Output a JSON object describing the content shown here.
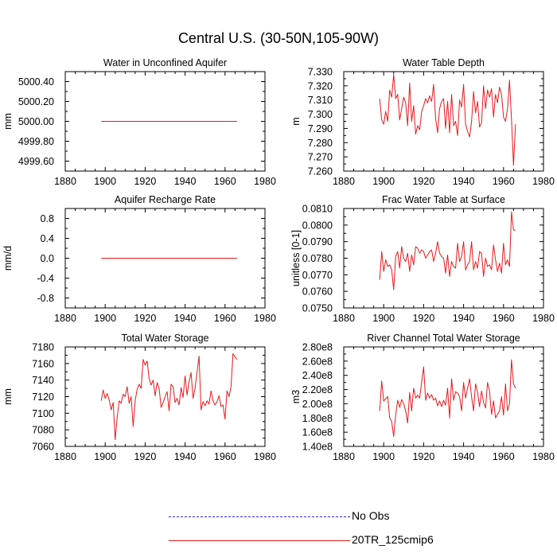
{
  "figure_title": "Central U.S. (30-50N,105-90W)",
  "colors": {
    "model": "#e8191a",
    "obs": "#2b2bd6",
    "axis": "#000000"
  },
  "legend": [
    {
      "label": "No Obs",
      "style": "dashed",
      "color": "#2b2bd6"
    },
    {
      "label": "20TR_125cmip6",
      "style": "solid",
      "color": "#e8191a"
    }
  ],
  "chart_data": [
    {
      "type": "line",
      "title": "Water in Unconfined Aquifer",
      "xlabel": "",
      "ylabel": "mm",
      "xlim": [
        1880,
        1980
      ],
      "ylim": [
        4999.5,
        5000.5
      ],
      "xticks": [
        1880,
        1900,
        1920,
        1940,
        1960,
        1980
      ],
      "yticks": [
        4999.6,
        4999.8,
        5000.0,
        5000.2,
        5000.4
      ],
      "ytick_labels": [
        "4999.60",
        "4999.80",
        "5000.00",
        "5000.20",
        "5000.40"
      ],
      "series": [
        {
          "name": "20TR_125cmip6",
          "x_start": 1898,
          "x_step": 1,
          "values": [
            5000,
            5000,
            5000,
            5000,
            5000,
            5000,
            5000,
            5000,
            5000,
            5000,
            5000,
            5000,
            5000,
            5000,
            5000,
            5000,
            5000,
            5000,
            5000,
            5000,
            5000,
            5000,
            5000,
            5000,
            5000,
            5000,
            5000,
            5000,
            5000,
            5000,
            5000,
            5000,
            5000,
            5000,
            5000,
            5000,
            5000,
            5000,
            5000,
            5000,
            5000,
            5000,
            5000,
            5000,
            5000,
            5000,
            5000,
            5000,
            5000,
            5000,
            5000,
            5000,
            5000,
            5000,
            5000,
            5000,
            5000,
            5000,
            5000,
            5000,
            5000,
            5000,
            5000,
            5000,
            5000,
            5000,
            5000,
            5000,
            5000
          ]
        }
      ]
    },
    {
      "type": "line",
      "title": "Water Table Depth",
      "xlabel": "",
      "ylabel": "m",
      "xlim": [
        1880,
        1980
      ],
      "ylim": [
        7.26,
        7.33
      ],
      "xticks": [
        1880,
        1900,
        1920,
        1940,
        1960,
        1980
      ],
      "yticks": [
        7.26,
        7.27,
        7.28,
        7.29,
        7.3,
        7.31,
        7.32,
        7.33
      ],
      "ytick_labels": [
        "7.260",
        "7.270",
        "7.280",
        "7.290",
        "7.300",
        "7.310",
        "7.320",
        "7.330"
      ],
      "series": [
        {
          "name": "20TR_125cmip6",
          "x_start": 1898,
          "x_step": 1,
          "values": [
            7.311,
            7.296,
            7.293,
            7.302,
            7.295,
            7.317,
            7.312,
            7.328,
            7.311,
            7.314,
            7.296,
            7.304,
            7.312,
            7.308,
            7.292,
            7.322,
            7.295,
            7.306,
            7.286,
            7.292,
            7.289,
            7.302,
            7.306,
            7.311,
            7.308,
            7.313,
            7.309,
            7.321,
            7.297,
            7.287,
            7.304,
            7.309,
            7.311,
            7.29,
            7.309,
            7.287,
            7.314,
            7.292,
            7.295,
            7.285,
            7.31,
            7.305,
            7.321,
            7.293,
            7.288,
            7.284,
            7.295,
            7.316,
            7.301,
            7.309,
            7.291,
            7.294,
            7.32,
            7.304,
            7.317,
            7.312,
            7.318,
            7.298,
            7.314,
            7.308,
            7.319,
            7.314,
            7.298,
            7.295,
            7.304,
            7.324,
            7.296,
            7.264,
            7.293
          ]
        }
      ]
    },
    {
      "type": "line",
      "title": "Aquifer Recharge Rate",
      "xlabel": "",
      "ylabel": "mm/d",
      "xlim": [
        1880,
        1980
      ],
      "ylim": [
        -1.0,
        1.0
      ],
      "xticks": [
        1880,
        1900,
        1920,
        1940,
        1960,
        1980
      ],
      "yticks": [
        -0.8,
        -0.4,
        0.0,
        0.4,
        0.8
      ],
      "ytick_labels": [
        "-0.8",
        "-0.4",
        "0.0",
        "0.4",
        "0.8"
      ],
      "series": [
        {
          "name": "20TR_125cmip6",
          "x_start": 1898,
          "x_step": 1,
          "values": [
            0,
            0,
            0,
            0,
            0,
            0,
            0,
            0,
            0,
            0,
            0,
            0,
            0,
            0,
            0,
            0,
            0,
            0,
            0,
            0,
            0,
            0,
            0,
            0,
            0,
            0,
            0,
            0,
            0,
            0,
            0,
            0,
            0,
            0,
            0,
            0,
            0,
            0,
            0,
            0,
            0,
            0,
            0,
            0,
            0,
            0,
            0,
            0,
            0,
            0,
            0,
            0,
            0,
            0,
            0,
            0,
            0,
            0,
            0,
            0,
            0,
            0,
            0,
            0,
            0,
            0,
            0,
            0,
            0
          ]
        }
      ]
    },
    {
      "type": "line",
      "title": "Frac Water Table at Surface",
      "xlabel": "",
      "ylabel": "unitless [0-1]",
      "xlim": [
        1880,
        1980
      ],
      "ylim": [
        0.075,
        0.081
      ],
      "xticks": [
        1880,
        1900,
        1920,
        1940,
        1960,
        1980
      ],
      "yticks": [
        0.075,
        0.076,
        0.077,
        0.078,
        0.079,
        0.08,
        0.081
      ],
      "ytick_labels": [
        "0.0750",
        "0.0760",
        "0.0770",
        "0.0780",
        "0.0790",
        "0.0800",
        "0.0810"
      ],
      "series": [
        {
          "name": "20TR_125cmip6",
          "x_start": 1898,
          "x_step": 1,
          "values": [
            0.0767,
            0.0784,
            0.0772,
            0.0779,
            0.0775,
            0.0776,
            0.0773,
            0.0761,
            0.0781,
            0.0784,
            0.0774,
            0.0787,
            0.078,
            0.0778,
            0.0783,
            0.0772,
            0.0782,
            0.0776,
            0.0787,
            0.0786,
            0.0783,
            0.0785,
            0.0784,
            0.078,
            0.0782,
            0.0784,
            0.0785,
            0.0778,
            0.0783,
            0.079,
            0.0783,
            0.0781,
            0.078,
            0.0771,
            0.0782,
            0.0769,
            0.0778,
            0.0775,
            0.0774,
            0.0789,
            0.0778,
            0.0781,
            0.079,
            0.0773,
            0.0776,
            0.0778,
            0.079,
            0.0773,
            0.0778,
            0.0774,
            0.0784,
            0.0783,
            0.0769,
            0.078,
            0.0775,
            0.0776,
            0.0773,
            0.0788,
            0.0779,
            0.0772,
            0.0777,
            0.0771,
            0.0789,
            0.0776,
            0.0779,
            0.0775,
            0.0808,
            0.0797,
            0.0797
          ]
        }
      ]
    },
    {
      "type": "line",
      "title": "Total Water Storage",
      "xlabel": "",
      "ylabel": "mm",
      "xlim": [
        1880,
        1980
      ],
      "ylim": [
        7060,
        7180
      ],
      "xticks": [
        1880,
        1900,
        1920,
        1940,
        1960,
        1980
      ],
      "yticks": [
        7060,
        7080,
        7100,
        7120,
        7140,
        7160,
        7180
      ],
      "ytick_labels": [
        "7060",
        "7080",
        "7100",
        "7120",
        "7140",
        "7160",
        "7180"
      ],
      "series": [
        {
          "name": "20TR_125cmip6",
          "x_start": 1898,
          "x_step": 1,
          "values": [
            7115,
            7128,
            7118,
            7124,
            7116,
            7104,
            7113,
            7068,
            7095,
            7115,
            7112,
            7123,
            7120,
            7132,
            7112,
            7120,
            7084,
            7115,
            7129,
            7135,
            7130,
            7165,
            7158,
            7163,
            7142,
            7134,
            7140,
            7121,
            7137,
            7130,
            7107,
            7113,
            7120,
            7126,
            7103,
            7135,
            7132,
            7113,
            7118,
            7110,
            7131,
            7119,
            7145,
            7122,
            7138,
            7149,
            7118,
            7130,
            7150,
            7169,
            7104,
            7114,
            7109,
            7115,
            7111,
            7127,
            7115,
            7110,
            7114,
            7121,
            7108,
            7110,
            7093,
            7127,
            7120,
            7132,
            7172,
            7168,
            7165
          ]
        }
      ]
    },
    {
      "type": "line",
      "title": "River Channel Total Water Storage",
      "xlabel": "",
      "ylabel": "m3",
      "xlim": [
        1880,
        1980
      ],
      "ylim": [
        140000000.0,
        280000000.0
      ],
      "xticks": [
        1880,
        1900,
        1920,
        1940,
        1960,
        1980
      ],
      "yticks": [
        140000000.0,
        160000000.0,
        180000000.0,
        200000000.0,
        220000000.0,
        240000000.0,
        260000000.0,
        280000000.0
      ],
      "ytick_labels": [
        "1.40e8",
        "1.60e8",
        "1.80e8",
        "2.00e8",
        "2.20e8",
        "2.40e8",
        "2.60e8",
        "2.80e8"
      ],
      "series": [
        {
          "name": "20TR_125cmip6",
          "x_start": 1898,
          "x_step": 1,
          "values": [
            190000000.0,
            232000000.0,
            204000000.0,
            207000000.0,
            210000000.0,
            180000000.0,
            175000000.0,
            154000000.0,
            184000000.0,
            205000000.0,
            195000000.0,
            206000000.0,
            200000000.0,
            190000000.0,
            173000000.0,
            216000000.0,
            190000000.0,
            222000000.0,
            208000000.0,
            212000000.0,
            208000000.0,
            230000000.0,
            252000000.0,
            205000000.0,
            215000000.0,
            208000000.0,
            213000000.0,
            205000000.0,
            208000000.0,
            197000000.0,
            204000000.0,
            196000000.0,
            205000000.0,
            198000000.0,
            222000000.0,
            180000000.0,
            235000000.0,
            205000000.0,
            217000000.0,
            215000000.0,
            210000000.0,
            190000000.0,
            230000000.0,
            208000000.0,
            222000000.0,
            235000000.0,
            210000000.0,
            190000000.0,
            228000000.0,
            216000000.0,
            196000000.0,
            218000000.0,
            202000000.0,
            194000000.0,
            230000000.0,
            218000000.0,
            185000000.0,
            204000000.0,
            180000000.0,
            185000000.0,
            190000000.0,
            210000000.0,
            184000000.0,
            228000000.0,
            190000000.0,
            200000000.0,
            262000000.0,
            228000000.0,
            222000000.0
          ]
        }
      ]
    }
  ]
}
